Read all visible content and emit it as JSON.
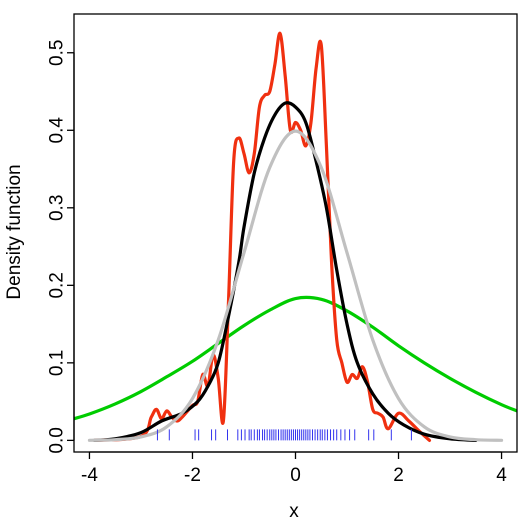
{
  "chart_data": {
    "type": "line",
    "title": "",
    "xlabel": "x",
    "ylabel": "Density function",
    "xlim": [
      -4.3,
      4.3
    ],
    "ylim": [
      -0.015,
      0.55
    ],
    "x_ticks": [
      -4,
      -2,
      0,
      2,
      4
    ],
    "x_tick_labels": [
      "-4",
      "-2",
      "0",
      "2",
      "4"
    ],
    "y_ticks": [
      0.0,
      0.1,
      0.2,
      0.3,
      0.4,
      0.5
    ],
    "y_tick_labels": [
      "0.0",
      "0.1",
      "0.2",
      "0.3",
      "0.4",
      "0.5"
    ],
    "grid": false,
    "legend": "none",
    "series": [
      {
        "color": "#00cc00",
        "x": [
          -4.3,
          -4.0,
          -3.5,
          -3.0,
          -2.5,
          -2.0,
          -1.5,
          -1.0,
          -0.5,
          0.0,
          0.5,
          1.0,
          1.5,
          2.0,
          2.5,
          3.0,
          3.5,
          4.0,
          4.3
        ],
        "y": [
          0.028,
          0.034,
          0.047,
          0.063,
          0.082,
          0.102,
          0.125,
          0.148,
          0.168,
          0.183,
          0.182,
          0.167,
          0.146,
          0.122,
          0.1,
          0.08,
          0.062,
          0.046,
          0.038
        ]
      },
      {
        "color": "#f03010",
        "x": [
          -3.9,
          -3.0,
          -2.8,
          -2.7,
          -2.6,
          -2.5,
          -2.4,
          -2.3,
          -2.2,
          -2.0,
          -1.9,
          -1.8,
          -1.7,
          -1.6,
          -1.5,
          -1.4,
          -1.3,
          -1.2,
          -1.1,
          -1.0,
          -0.9,
          -0.8,
          -0.7,
          -0.6,
          -0.5,
          -0.4,
          -0.3,
          -0.2,
          -0.1,
          0.0,
          0.1,
          0.2,
          0.3,
          0.4,
          0.5,
          0.6,
          0.7,
          0.8,
          0.9,
          1.0,
          1.1,
          1.2,
          1.3,
          1.4,
          1.5,
          1.6,
          1.7,
          1.8,
          2.0,
          2.2,
          2.4,
          2.6
        ],
        "y": [
          0.0,
          0.005,
          0.03,
          0.04,
          0.028,
          0.038,
          0.03,
          0.025,
          0.03,
          0.045,
          0.05,
          0.085,
          0.07,
          0.11,
          0.08,
          0.025,
          0.18,
          0.36,
          0.39,
          0.37,
          0.345,
          0.37,
          0.43,
          0.445,
          0.45,
          0.485,
          0.525,
          0.47,
          0.4,
          0.41,
          0.4,
          0.38,
          0.41,
          0.48,
          0.51,
          0.38,
          0.23,
          0.13,
          0.1,
          0.075,
          0.085,
          0.08,
          0.095,
          0.075,
          0.04,
          0.035,
          0.03,
          0.015,
          0.035,
          0.025,
          0.012,
          0.0
        ]
      },
      {
        "color": "#000000",
        "x": [
          -3.9,
          -3.5,
          -3.0,
          -2.6,
          -2.2,
          -1.9,
          -1.7,
          -1.5,
          -1.3,
          -1.1,
          -1.0,
          -0.8,
          -0.6,
          -0.4,
          -0.2,
          0.0,
          0.2,
          0.4,
          0.6,
          0.8,
          1.0,
          1.2,
          1.5,
          1.8,
          2.1,
          2.5,
          3.0,
          3.5
        ],
        "y": [
          0.0,
          0.002,
          0.01,
          0.025,
          0.035,
          0.05,
          0.07,
          0.1,
          0.16,
          0.23,
          0.275,
          0.345,
          0.39,
          0.42,
          0.435,
          0.43,
          0.41,
          0.36,
          0.3,
          0.22,
          0.15,
          0.1,
          0.06,
          0.035,
          0.02,
          0.008,
          0.002,
          0.0
        ]
      },
      {
        "color": "#c0c0c0",
        "x": [
          -4.0,
          -3.5,
          -3.0,
          -2.5,
          -2.0,
          -1.5,
          -1.0,
          -0.5,
          0.0,
          0.5,
          1.0,
          1.5,
          2.0,
          2.5,
          3.0,
          3.5,
          4.0
        ],
        "y": [
          0.0001,
          0.0009,
          0.0044,
          0.0175,
          0.054,
          0.1295,
          0.242,
          0.352,
          0.3989,
          0.352,
          0.242,
          0.1295,
          0.054,
          0.0175,
          0.0044,
          0.0009,
          0.0001
        ]
      }
    ],
    "rug": {
      "color": "#3333ee",
      "x": [
        -2.68,
        -2.45,
        -1.95,
        -1.88,
        -1.63,
        -1.55,
        -1.32,
        -1.12,
        -1.05,
        -0.98,
        -0.9,
        -0.86,
        -0.8,
        -0.74,
        -0.7,
        -0.64,
        -0.6,
        -0.55,
        -0.5,
        -0.46,
        -0.42,
        -0.38,
        -0.33,
        -0.28,
        -0.24,
        -0.2,
        -0.16,
        -0.12,
        -0.08,
        -0.04,
        0.0,
        0.04,
        0.08,
        0.12,
        0.16,
        0.2,
        0.24,
        0.28,
        0.33,
        0.38,
        0.43,
        0.48,
        0.52,
        0.57,
        0.62,
        0.68,
        0.74,
        0.8,
        0.88,
        0.96,
        1.05,
        1.15,
        1.42,
        1.52,
        1.86,
        2.25
      ]
    }
  }
}
